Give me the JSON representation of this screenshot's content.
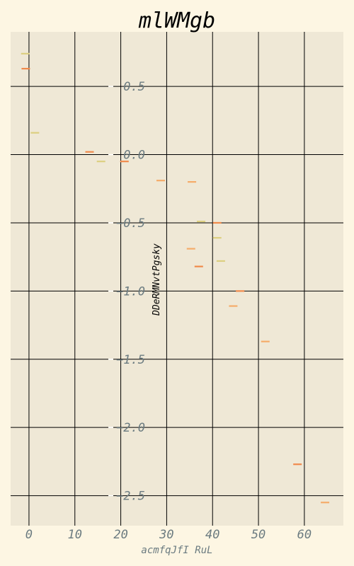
{
  "chart_data": {
    "type": "scatter",
    "title": "mlWMgb",
    "xlabel": "acmfqJfI RuL",
    "ylabel": "DDeRMNvtPgsky",
    "xlim": [
      -4,
      68.5
    ],
    "ylim": [
      -2.72,
      0.9
    ],
    "xticks": [
      0,
      10,
      20,
      30,
      40,
      50,
      60
    ],
    "yticks": [
      0.5,
      0.0,
      -0.5,
      -1.0,
      -1.5,
      -2.0,
      -2.5
    ],
    "ytick_labels": [
      "0.5",
      "0.0",
      "−0.5",
      "−1.0",
      "−1.5",
      "−2.0",
      "−2.5"
    ],
    "grid": true,
    "marker": "hline",
    "background_color": "#efe8d6",
    "page_color": "#fdf6e3",
    "grid_color": "#000000",
    "series": [
      {
        "color": "#f08a4b",
        "points": [
          {
            "x": -0.7,
            "y": 0.63
          },
          {
            "x": 13.2,
            "y": 0.02
          },
          {
            "x": 20.8,
            "y": -0.05
          },
          {
            "x": 37.0,
            "y": -0.82
          },
          {
            "x": 41.0,
            "y": -0.5
          },
          {
            "x": 46.0,
            "y": -1.0
          },
          {
            "x": 58.5,
            "y": -2.27
          }
        ]
      },
      {
        "color": "#f5ac6a",
        "points": [
          {
            "x": 28.7,
            "y": -0.19
          },
          {
            "x": 35.5,
            "y": -0.2
          },
          {
            "x": 35.3,
            "y": -0.69
          },
          {
            "x": 44.5,
            "y": -1.11
          },
          {
            "x": 51.5,
            "y": -1.37
          },
          {
            "x": 64.5,
            "y": -2.55
          }
        ]
      },
      {
        "color": "#dccf80",
        "points": [
          {
            "x": -0.8,
            "y": 0.74
          },
          {
            "x": 1.3,
            "y": 0.16
          },
          {
            "x": 15.7,
            "y": -0.05
          },
          {
            "x": 37.5,
            "y": -0.49
          },
          {
            "x": 41.0,
            "y": -0.61
          },
          {
            "x": 41.8,
            "y": -0.78
          }
        ]
      }
    ]
  }
}
